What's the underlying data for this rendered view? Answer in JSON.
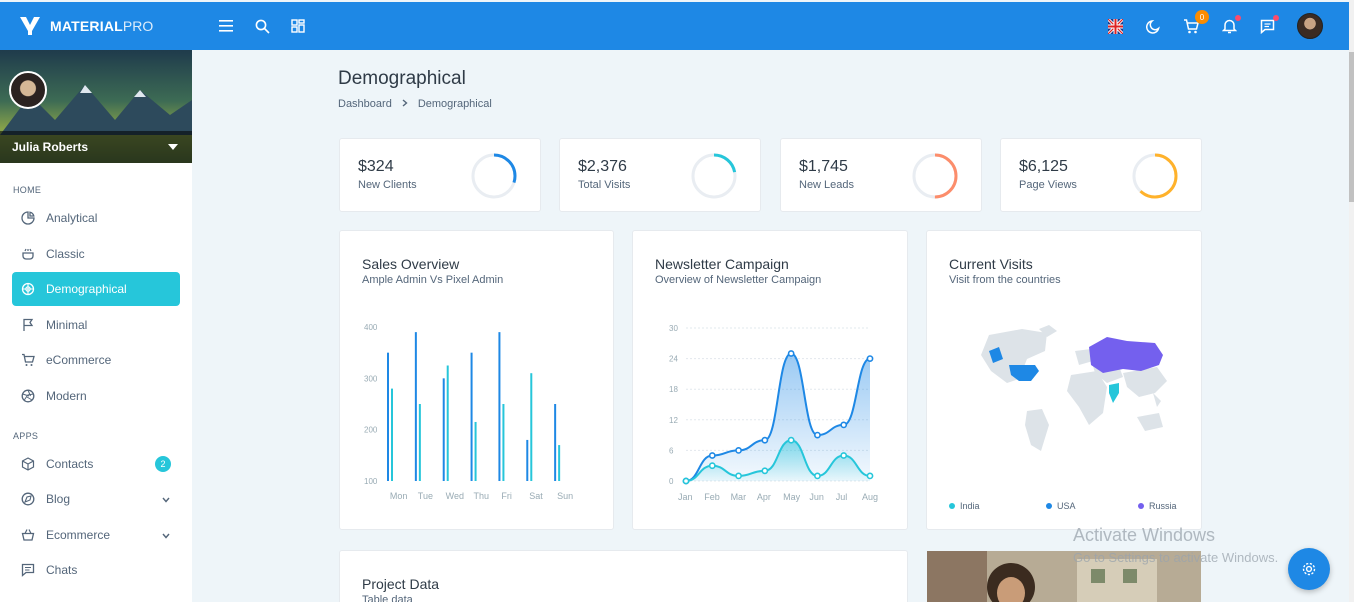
{
  "brand": {
    "bold": "MATERIAL",
    "thin": "PRO"
  },
  "topbar": {
    "cart_count": "0"
  },
  "profile": {
    "name": "Julia Roberts"
  },
  "sidebar": {
    "sections": [
      {
        "caption": "HOME",
        "items": [
          {
            "label": "Analytical",
            "icon": "analytics-icon"
          },
          {
            "label": "Classic",
            "icon": "classic-icon"
          },
          {
            "label": "Demographical",
            "icon": "demographical-icon",
            "active": true
          },
          {
            "label": "Minimal",
            "icon": "flag-icon"
          },
          {
            "label": "eCommerce",
            "icon": "cart-icon"
          },
          {
            "label": "Modern",
            "icon": "aperture-icon"
          }
        ]
      },
      {
        "caption": "APPS",
        "items": [
          {
            "label": "Contacts",
            "icon": "box-icon",
            "badge": "2"
          },
          {
            "label": "Blog",
            "icon": "blog-icon",
            "has_children": true
          },
          {
            "label": "Ecommerce",
            "icon": "basket-icon",
            "has_children": true
          },
          {
            "label": "Chats",
            "icon": "chat-icon"
          }
        ]
      }
    ]
  },
  "page": {
    "title": "Demographical",
    "breadcrumb": [
      "Dashboard",
      "Demographical"
    ]
  },
  "stats": [
    {
      "value": "$324",
      "label": "New Clients",
      "progress": 0.3,
      "color": "#1e88e5"
    },
    {
      "value": "$2,376",
      "label": "Total Visits",
      "progress": 0.22,
      "color": "#26c6da"
    },
    {
      "value": "$1,745",
      "label": "New Leads",
      "progress": 0.5,
      "color": "#fc8d6b"
    },
    {
      "value": "$6,125",
      "label": "Page Views",
      "progress": 0.62,
      "color": "#ffb22b"
    }
  ],
  "sales_overview": {
    "title": "Sales Overview",
    "subtitle": "Ample Admin Vs Pixel Admin"
  },
  "newsletter": {
    "title": "Newsletter Campaign",
    "subtitle": "Overview of Newsletter Campaign"
  },
  "visits": {
    "title": "Current Visits",
    "subtitle": "Visit from the countries",
    "legend": [
      {
        "label": "India",
        "color": "#26c6da"
      },
      {
        "label": "USA",
        "color": "#1e88e5"
      },
      {
        "label": "Russia",
        "color": "#7460ee"
      }
    ]
  },
  "project": {
    "title": "Project Data",
    "subtitle": "Table data"
  },
  "watermark": {
    "line1": "Activate Windows",
    "line2": "Go to Settings to activate Windows."
  },
  "chart_data": [
    {
      "type": "bar",
      "categories": [
        "Mon",
        "Tue",
        "Wed",
        "Thu",
        "Fri",
        "Sat",
        "Sun"
      ],
      "ylim": [
        100,
        400
      ],
      "yticks": [
        "100",
        "200",
        "300",
        "400"
      ],
      "series": [
        {
          "values": [
            350,
            390,
            300,
            350,
            390,
            180,
            250
          ],
          "color": "#1e88e5"
        },
        {
          "values": [
            280,
            250,
            325,
            215,
            250,
            310,
            170
          ],
          "color": "#26c6da"
        }
      ]
    },
    {
      "type": "area",
      "categories": [
        "Jan",
        "Feb",
        "Mar",
        "Apr",
        "May",
        "Jun",
        "Jul",
        "Aug"
      ],
      "ylim": [
        0,
        30
      ],
      "yticks": [
        "0",
        "6",
        "12",
        "18",
        "24",
        "30"
      ],
      "series": [
        {
          "values": [
            0,
            5,
            6,
            8,
            25,
            9,
            11,
            24
          ],
          "color": "#1e88e5"
        },
        {
          "values": [
            0,
            3,
            1,
            2,
            8,
            1,
            5,
            1
          ],
          "color": "#26c6da"
        }
      ]
    }
  ]
}
